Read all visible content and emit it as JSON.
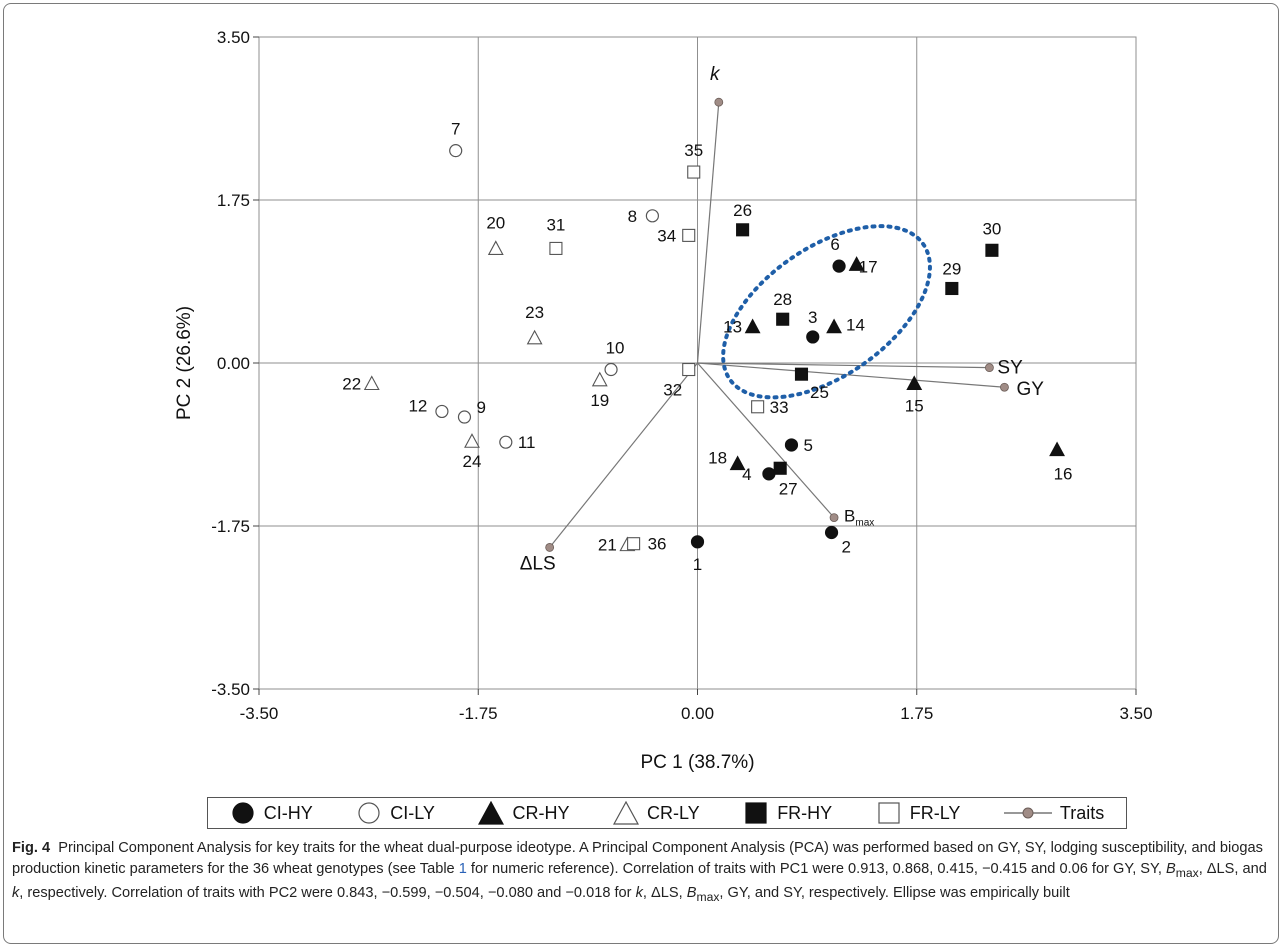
{
  "chart_data": {
    "type": "scatter",
    "xlabel": "PC 1 (38.7%)",
    "ylabel": "PC 2 (26.6%)",
    "xlim": [
      -3.5,
      3.5
    ],
    "ylim": [
      -3.5,
      3.5
    ],
    "xticks": [
      "-3.50",
      "-1.75",
      "0.00",
      "1.75",
      "3.50"
    ],
    "yticks": [
      "3.50",
      "1.75",
      "0.00",
      "-1.75",
      "-3.50"
    ],
    "grid": true,
    "legend_position": "bottom",
    "series": [
      {
        "name": "CI-HY",
        "marker": "circle",
        "filled": true,
        "points": [
          {
            "label": "1",
            "x": 0.0,
            "y": -1.92
          },
          {
            "label": "2",
            "x": 1.07,
            "y": -1.82
          },
          {
            "label": "3",
            "x": 0.92,
            "y": 0.28
          },
          {
            "label": "4",
            "x": 0.57,
            "y": -1.19
          },
          {
            "label": "5",
            "x": 0.75,
            "y": -0.88
          },
          {
            "label": "6",
            "x": 1.13,
            "y": 1.04
          }
        ]
      },
      {
        "name": "CI-LY",
        "marker": "circle",
        "filled": false,
        "points": [
          {
            "label": "7",
            "x": -1.93,
            "y": 2.28
          },
          {
            "label": "8",
            "x": -0.36,
            "y": 1.58
          },
          {
            "label": "9",
            "x": -1.86,
            "y": -0.58
          },
          {
            "label": "10",
            "x": -0.69,
            "y": -0.07
          },
          {
            "label": "11",
            "x": -1.53,
            "y": -0.85
          },
          {
            "label": "12",
            "x": -2.04,
            "y": -0.52
          }
        ]
      },
      {
        "name": "CR-HY",
        "marker": "triangle",
        "filled": true,
        "points": [
          {
            "label": "13",
            "x": 0.44,
            "y": 0.39
          },
          {
            "label": "14",
            "x": 1.09,
            "y": 0.39
          },
          {
            "label": "15",
            "x": 1.73,
            "y": -0.22
          },
          {
            "label": "16",
            "x": 2.87,
            "y": -0.93
          },
          {
            "label": "17",
            "x": 1.27,
            "y": 1.06
          },
          {
            "label": "18",
            "x": 0.32,
            "y": -1.08
          }
        ]
      },
      {
        "name": "CR-LY",
        "marker": "triangle",
        "filled": false,
        "points": [
          {
            "label": "19",
            "x": -0.78,
            "y": -0.18
          },
          {
            "label": "20",
            "x": -1.61,
            "y": 1.23
          },
          {
            "label": "21",
            "x": -0.56,
            "y": -1.95
          },
          {
            "label": "22",
            "x": -2.6,
            "y": -0.22
          },
          {
            "label": "23",
            "x": -1.3,
            "y": 0.27
          },
          {
            "label": "24",
            "x": -1.8,
            "y": -0.84
          }
        ]
      },
      {
        "name": "FR-HY",
        "marker": "square",
        "filled": true,
        "points": [
          {
            "label": "25",
            "x": 0.83,
            "y": -0.12
          },
          {
            "label": "26",
            "x": 0.36,
            "y": 1.43
          },
          {
            "label": "27",
            "x": 0.66,
            "y": -1.13
          },
          {
            "label": "28",
            "x": 0.68,
            "y": 0.47
          },
          {
            "label": "29",
            "x": 2.03,
            "y": 0.8
          },
          {
            "label": "30",
            "x": 2.35,
            "y": 1.21
          }
        ]
      },
      {
        "name": "FR-LY",
        "marker": "square",
        "filled": false,
        "points": [
          {
            "label": "31",
            "x": -1.13,
            "y": 1.23
          },
          {
            "label": "32",
            "x": -0.07,
            "y": -0.07
          },
          {
            "label": "33",
            "x": 0.48,
            "y": -0.47
          },
          {
            "label": "34",
            "x": -0.07,
            "y": 1.37
          },
          {
            "label": "35",
            "x": -0.03,
            "y": 2.05
          },
          {
            "label": "36",
            "x": -0.51,
            "y": -1.94
          }
        ]
      }
    ],
    "traits": {
      "name": "Traits",
      "vectors": [
        {
          "label": "k",
          "x": 0.17,
          "y": 2.8
        },
        {
          "label": "SY",
          "x": 2.33,
          "y": -0.05
        },
        {
          "label": "GY",
          "x": 2.45,
          "y": -0.26
        },
        {
          "label": "B",
          "sub": "max",
          "x": 1.09,
          "y": -1.66
        },
        {
          "label": "ΔLS",
          "x": -1.18,
          "y": -1.98
        }
      ]
    },
    "annotation": "dotted ellipse around genotypes 3, 6, 13, 14, 17, 25, 28"
  },
  "colors": {
    "markers": "#111111",
    "trait_dot": "#a08c86",
    "trait_line": "#777777",
    "ellipse": "#1f5fa8",
    "grid": "#8f8f8f",
    "link": "#2a62b7"
  },
  "legend": [
    {
      "label": "CI-HY",
      "marker": "circle",
      "filled": true
    },
    {
      "label": "CI-LY",
      "marker": "circle",
      "filled": false
    },
    {
      "label": "CR-HY",
      "marker": "triangle",
      "filled": true
    },
    {
      "label": "CR-LY",
      "marker": "triangle",
      "filled": false
    },
    {
      "label": "FR-HY",
      "marker": "square",
      "filled": true
    },
    {
      "label": "FR-LY",
      "marker": "square",
      "filled": false
    },
    {
      "label": "Traits",
      "marker": "line-dot",
      "filled": true
    }
  ],
  "caption": {
    "label": "Fig. 4",
    "title": "Principal Component Analysis for key traits for the wheat dual-purpose ideotype.",
    "p1": "A Principal Component Analysis (PCA) was performed based on GY, SY, lodging susceptibility, and biogas production kinetic parameters for the 36 wheat genotypes (see Table ",
    "table_ref": "1",
    "p2": " for numeric reference). Correlation of traits with PC1 were 0.913, 0.868, 0.415, −0.415 and 0.06 for GY, SY, ",
    "bmax_b": "B",
    "bmax_sub": "max",
    "p3": ", ΔLS, and ",
    "k": "k",
    "p4": ", respectively. Correlation of traits with PC2 were 0.843, −0.599, −0.504, −0.080 and −0.018 for ",
    "k2": "k",
    "p5": ", ΔLS, ",
    "bmax2_b": "B",
    "bmax2_sub": "max",
    "p6": ", GY, and SY, respectively. Ellipse was empirically built"
  }
}
